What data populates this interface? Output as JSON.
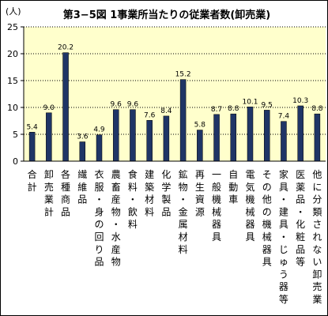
{
  "chart_data": {
    "type": "bar",
    "title": "第3−5図 1事業所当たりの従業者数(卸売業)",
    "unit_label": "(人)",
    "ylim": [
      0,
      25
    ],
    "yticks": [
      "0",
      "5",
      "10",
      "15",
      "20",
      "25"
    ],
    "grid": "horizontal dotted",
    "background_color": "#ffffcc",
    "bar_color": "#1f3566",
    "categories": [
      "合計",
      "卸売業計",
      "各種商品",
      "繊維品",
      "衣服・身の回り品",
      "農畜産物・水産物",
      "食料・飲料",
      "建築材料",
      "化学製品",
      "鉱物・金属材料",
      "再生資源",
      "一般機械器具",
      "自動車",
      "電気機械器具",
      "その他の機械器具",
      "家具・建具・じゅう器等",
      "医薬品・化粧品等",
      "他に分類されない卸売業"
    ],
    "values": [
      5.4,
      9.0,
      20.2,
      3.6,
      4.9,
      9.6,
      9.6,
      7.6,
      8.4,
      15.2,
      5.8,
      8.7,
      8.8,
      10.1,
      9.5,
      7.4,
      10.3,
      8.8
    ],
    "data_labels": [
      "5.4",
      "9.0",
      "20.2",
      "3.6",
      "4.9",
      "9.6",
      "9.6",
      "7.6",
      "8.4",
      "15.2",
      "5.8",
      "8.7",
      "8.8",
      "10.1",
      "9.5",
      "7.4",
      "10.3",
      "8.8"
    ]
  }
}
